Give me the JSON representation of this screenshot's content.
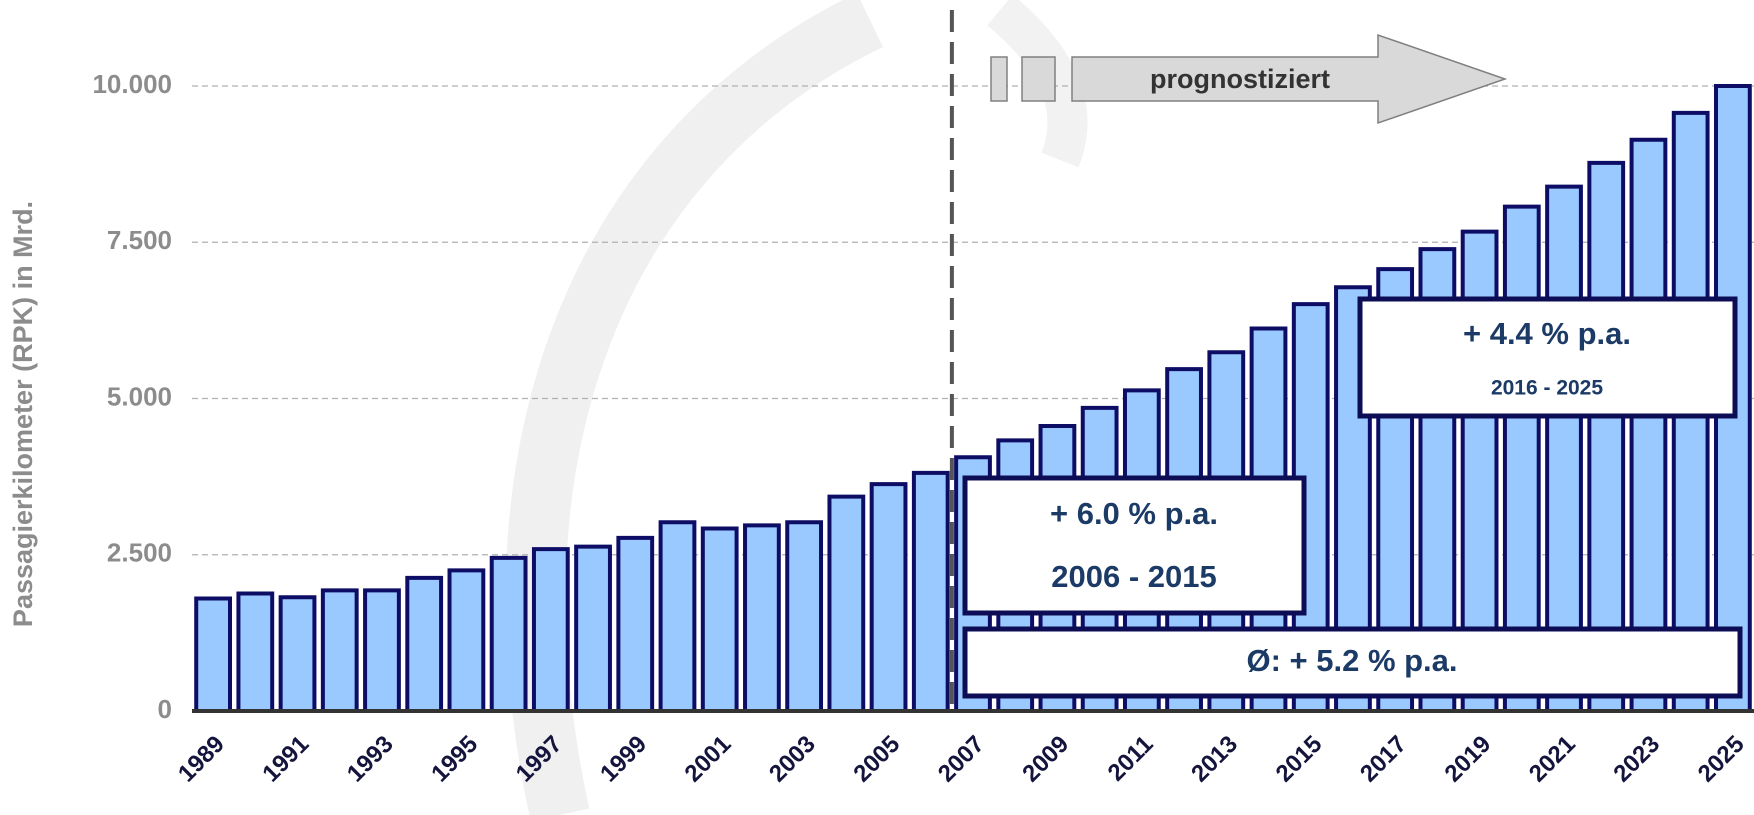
{
  "chart_data": {
    "type": "bar",
    "y_label": "Passagierkilometer (RPK) in Mrd.",
    "categories": [
      "1989",
      null,
      "1991",
      null,
      "1993",
      null,
      "1995",
      null,
      "1997",
      null,
      "1999",
      null,
      "2001",
      null,
      "2003",
      null,
      "2005",
      null,
      "2007",
      null,
      "2009",
      null,
      "2011",
      null,
      "2013",
      null,
      "2015",
      null,
      "2017",
      null,
      "2019",
      null,
      "2021",
      null,
      "2023",
      null,
      "2025"
    ],
    "values": [
      1800,
      1880,
      1820,
      1930,
      1930,
      2130,
      2250,
      2450,
      2590,
      2630,
      2770,
      3020,
      2920,
      2970,
      3020,
      3430,
      3630,
      3810,
      4060,
      4330,
      4560,
      4850,
      5130,
      5470,
      5740,
      6120,
      6510,
      6780,
      7070,
      7390,
      7670,
      8070,
      8390,
      8770,
      9140,
      9570,
      10000
    ],
    "color": "#99c9ff",
    "edge_color": "#0d0d66",
    "ylim": [
      0,
      10000
    ],
    "yticks": [
      0,
      {
        "value": 2500,
        "label": "2.500"
      },
      {
        "value": 5000,
        "label": "5.000"
      },
      {
        "value": 7500,
        "label": "7.500"
      },
      {
        "value": 10000,
        "label": "10.000"
      }
    ],
    "grid": true,
    "forecast_label": "prognostiziert",
    "annotations": [
      {
        "rate": "+ 6.0 % p.a.",
        "period": "2006 - 2015"
      },
      {
        "rate": "+ 4.4 % p.a.",
        "period": "2016 - 2025"
      },
      {
        "rate": "Ø: + 5.2 % p.a."
      }
    ]
  }
}
